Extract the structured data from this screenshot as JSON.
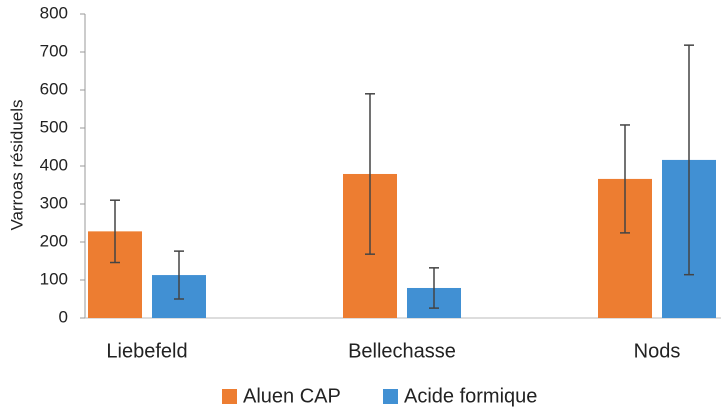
{
  "chart_data": {
    "type": "bar",
    "y_label": "Varroas résiduels",
    "categories": [
      "Liebefeld",
      "Bellechasse",
      "Nods"
    ],
    "series": [
      {
        "name": "Aluen CAP",
        "color": "#ed7d31",
        "values": [
          228,
          379,
          366
        ],
        "errors": [
          82,
          211,
          142
        ]
      },
      {
        "name": "Acide formique",
        "color": "#4190d3",
        "values": [
          113,
          79,
          416
        ],
        "errors": [
          63,
          53,
          302
        ]
      }
    ],
    "ylim": [
      0,
      800
    ],
    "yticks": [
      0,
      100,
      200,
      300,
      400,
      500,
      600,
      700,
      800
    ],
    "grid": false,
    "legend": "bottom"
  }
}
